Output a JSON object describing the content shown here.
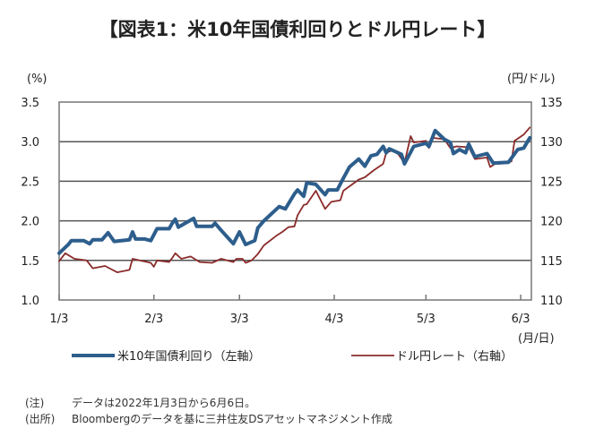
{
  "chart_data": {
    "type": "line",
    "title": "【図表1：米10年国債利回りとドル円レート】",
    "ylabel_left": "(%)",
    "ylabel_right": "(円/ドル)",
    "xlabel": "(月/日)",
    "x_unit": "days since 2022-01-03",
    "xlim": [
      0,
      154.5
    ],
    "ylim_left": [
      1.0,
      3.5
    ],
    "ylim_right": [
      110,
      135
    ],
    "yticks_left": [
      "1.0",
      "1.5",
      "2.0",
      "2.5",
      "3.0",
      "3.5"
    ],
    "yticks_right": [
      "110",
      "115",
      "120",
      "125",
      "130",
      "135"
    ],
    "xticks": [
      {
        "day": 0,
        "label": "1/3"
      },
      {
        "day": 31,
        "label": "2/3"
      },
      {
        "day": 59,
        "label": "3/3"
      },
      {
        "day": 90,
        "label": "4/3"
      },
      {
        "day": 120,
        "label": "5/3"
      },
      {
        "day": 151,
        "label": "6/3"
      }
    ],
    "grid": true,
    "legend_position": "bottom",
    "series": [
      {
        "name": "米10年国債利回り（左軸）",
        "axis": "left",
        "color": "#2d5e8c",
        "points": [
          [
            0,
            1.59
          ],
          [
            3,
            1.7
          ],
          [
            4,
            1.75
          ],
          [
            8,
            1.75
          ],
          [
            10,
            1.71
          ],
          [
            11,
            1.76
          ],
          [
            14,
            1.76
          ],
          [
            16,
            1.85
          ],
          [
            18,
            1.74
          ],
          [
            23,
            1.76
          ],
          [
            24,
            1.86
          ],
          [
            25,
            1.77
          ],
          [
            28,
            1.77
          ],
          [
            30,
            1.75
          ],
          [
            32,
            1.9
          ],
          [
            36,
            1.9
          ],
          [
            37,
            1.97
          ],
          [
            38,
            2.02
          ],
          [
            39,
            1.92
          ],
          [
            44,
            2.03
          ],
          [
            45,
            1.93
          ],
          [
            50,
            1.93
          ],
          [
            51,
            1.97
          ],
          [
            53,
            1.88
          ],
          [
            57,
            1.71
          ],
          [
            59,
            1.86
          ],
          [
            61,
            1.7
          ],
          [
            64,
            1.75
          ],
          [
            65,
            1.91
          ],
          [
            67,
            2.0
          ],
          [
            72,
            2.18
          ],
          [
            74,
            2.15
          ],
          [
            77,
            2.34
          ],
          [
            78,
            2.39
          ],
          [
            80,
            2.31
          ],
          [
            81,
            2.48
          ],
          [
            84,
            2.46
          ],
          [
            87,
            2.33
          ],
          [
            88,
            2.39
          ],
          [
            91,
            2.39
          ],
          [
            93,
            2.54
          ],
          [
            95,
            2.68
          ],
          [
            98,
            2.78
          ],
          [
            100,
            2.69
          ],
          [
            102,
            2.82
          ],
          [
            104,
            2.84
          ],
          [
            106,
            2.94
          ],
          [
            107,
            2.86
          ],
          [
            108,
            2.91
          ],
          [
            112,
            2.84
          ],
          [
            113,
            2.72
          ],
          [
            116,
            2.94
          ],
          [
            120,
            2.98
          ],
          [
            121,
            2.94
          ],
          [
            123,
            3.14
          ],
          [
            126,
            3.03
          ],
          [
            128,
            2.99
          ],
          [
            129,
            2.85
          ],
          [
            131,
            2.9
          ],
          [
            133,
            2.86
          ],
          [
            134,
            2.97
          ],
          [
            136,
            2.81
          ],
          [
            140,
            2.85
          ],
          [
            142,
            2.73
          ],
          [
            147,
            2.74
          ],
          [
            150,
            2.9
          ],
          [
            152,
            2.92
          ],
          [
            154,
            3.05
          ]
        ]
      },
      {
        "name": "ドル円レート（右軸）",
        "axis": "right",
        "color": "#8b2b2b",
        "points": [
          [
            0,
            114.9
          ],
          [
            2,
            115.9
          ],
          [
            5,
            115.2
          ],
          [
            9,
            115.0
          ],
          [
            11,
            114.0
          ],
          [
            15,
            114.3
          ],
          [
            19,
            113.5
          ],
          [
            23,
            113.8
          ],
          [
            24,
            115.2
          ],
          [
            30,
            114.7
          ],
          [
            31,
            114.2
          ],
          [
            32,
            115.0
          ],
          [
            36,
            114.8
          ],
          [
            37,
            115.3
          ],
          [
            38,
            115.9
          ],
          [
            40,
            115.2
          ],
          [
            43,
            115.5
          ],
          [
            46,
            114.8
          ],
          [
            50,
            114.7
          ],
          [
            53,
            115.2
          ],
          [
            57,
            114.8
          ],
          [
            58,
            115.2
          ],
          [
            60,
            115.2
          ],
          [
            61,
            114.7
          ],
          [
            63,
            115.0
          ],
          [
            65,
            115.8
          ],
          [
            67,
            116.9
          ],
          [
            71,
            118.1
          ],
          [
            73,
            118.6
          ],
          [
            75,
            119.2
          ],
          [
            77,
            119.3
          ],
          [
            78,
            120.7
          ],
          [
            80,
            122.0
          ],
          [
            81,
            122.1
          ],
          [
            84,
            123.8
          ],
          [
            87,
            121.5
          ],
          [
            89,
            122.4
          ],
          [
            92,
            122.6
          ],
          [
            93,
            123.8
          ],
          [
            98,
            125.2
          ],
          [
            100,
            125.5
          ],
          [
            103,
            126.4
          ],
          [
            106,
            127.2
          ],
          [
            107,
            128.6
          ],
          [
            109,
            128.9
          ],
          [
            111,
            128.4
          ],
          [
            113,
            127.3
          ],
          [
            115,
            130.7
          ],
          [
            116,
            129.9
          ],
          [
            120,
            130.1
          ],
          [
            121,
            129.2
          ],
          [
            122,
            130.5
          ],
          [
            126,
            130.3
          ],
          [
            128,
            129.2
          ],
          [
            130,
            129.4
          ],
          [
            134,
            129.3
          ],
          [
            136,
            127.8
          ],
          [
            140,
            128.0
          ],
          [
            141,
            126.8
          ],
          [
            143,
            127.3
          ],
          [
            144,
            127.2
          ],
          [
            148,
            127.5
          ],
          [
            149,
            130.1
          ],
          [
            152,
            130.9
          ],
          [
            154,
            131.8
          ]
        ]
      }
    ]
  },
  "notes": [
    {
      "label": "(注)",
      "text": "データは2022年1月3日から6月6日。"
    },
    {
      "label": "(出所)",
      "text": "Bloombergのデータを基に三井住友DSアセットマネジメント作成"
    }
  ]
}
